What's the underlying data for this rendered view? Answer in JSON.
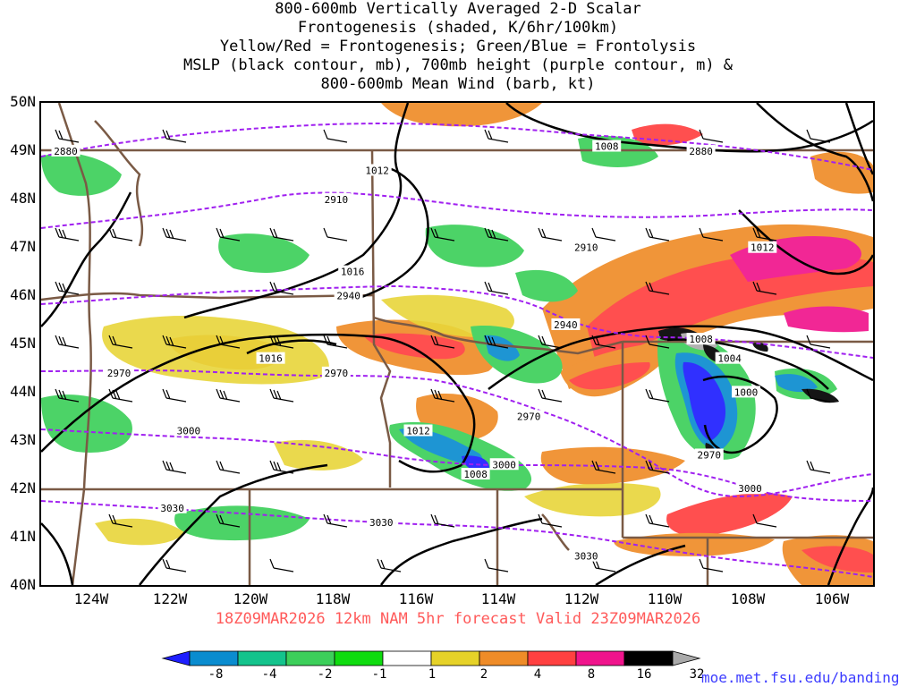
{
  "title": {
    "lines": [
      "800-600mb Vertically Averaged 2-D Scalar",
      "Frontogenesis (shaded, K/6hr/100km)",
      "Yellow/Red = Frontogenesis;  Green/Blue = Frontolysis",
      "MSLP (black contour, mb), 700mb height (purple contour, m) &",
      "800-600mb Mean Wind (barb, kt)"
    ]
  },
  "map": {
    "lat_labels": [
      "50N",
      "49N",
      "48N",
      "47N",
      "46N",
      "45N",
      "44N",
      "43N",
      "42N",
      "41N",
      "40N"
    ],
    "lon_labels": [
      "124W",
      "122W",
      "120W",
      "118W",
      "116W",
      "114W",
      "112W",
      "110W",
      "108W",
      "106W"
    ],
    "lat_values": [
      50,
      49,
      48,
      47,
      46,
      45,
      44,
      43,
      42,
      41,
      40
    ],
    "lon_values": [
      -124,
      -122,
      -120,
      -118,
      -116,
      -114,
      -112,
      -110,
      -108,
      -106
    ],
    "extent": {
      "lon_min": -125.2,
      "lon_max": -104.9,
      "lat_min": 40,
      "lat_max": 50
    },
    "mslp_labels": [
      {
        "text": "1012",
        "lon": -117.0,
        "lat": 48.6
      },
      {
        "text": "1008",
        "lon": -111.4,
        "lat": 49.1
      },
      {
        "text": "1016",
        "lon": -117.6,
        "lat": 46.5
      },
      {
        "text": "1016",
        "lon": -119.6,
        "lat": 44.7
      },
      {
        "text": "1012",
        "lon": -116.0,
        "lat": 43.2
      },
      {
        "text": "1008",
        "lon": -114.6,
        "lat": 42.3
      },
      {
        "text": "1012",
        "lon": -107.6,
        "lat": 47.0
      },
      {
        "text": "1008",
        "lon": -109.1,
        "lat": 45.1
      },
      {
        "text": "1004",
        "lon": -108.4,
        "lat": 44.7
      },
      {
        "text": "1000",
        "lon": -108.0,
        "lat": 44.0
      }
    ],
    "height_labels": [
      {
        "text": "2880",
        "lon": -109.1,
        "lat": 49.0
      },
      {
        "text": "2910",
        "lon": -118.0,
        "lat": 48.0
      },
      {
        "text": "2910",
        "lon": -111.9,
        "lat": 47.0
      },
      {
        "text": "2940",
        "lon": -117.7,
        "lat": 46.0
      },
      {
        "text": "2940",
        "lon": -112.4,
        "lat": 45.4
      },
      {
        "text": "2970",
        "lon": -123.3,
        "lat": 44.4
      },
      {
        "text": "2970",
        "lon": -118.0,
        "lat": 44.4
      },
      {
        "text": "2970",
        "lon": -113.3,
        "lat": 43.5
      },
      {
        "text": "2970",
        "lon": -108.9,
        "lat": 42.7
      },
      {
        "text": "3000",
        "lon": -121.6,
        "lat": 43.2
      },
      {
        "text": "3000",
        "lon": -113.9,
        "lat": 42.5
      },
      {
        "text": "3000",
        "lon": -107.9,
        "lat": 42.0
      },
      {
        "text": "3030",
        "lon": -122.0,
        "lat": 41.6
      },
      {
        "text": "3030",
        "lon": -116.9,
        "lat": 41.3
      },
      {
        "text": "3030",
        "lon": -111.9,
        "lat": 40.6
      },
      {
        "text": "2880",
        "lon": -124.6,
        "lat": 49.0
      }
    ]
  },
  "caption": "18Z09MAR2026  12km NAM 5hr forecast Valid 23Z09MAR2026",
  "colorbar": {
    "ticks": [
      "-8",
      "-4",
      "-2",
      "-1",
      "1",
      "2",
      "4",
      "8",
      "16",
      "32"
    ],
    "colors": [
      "#1e1eff",
      "#0a8ccf",
      "#14c38c",
      "#3ccf5a",
      "#0fdc0f",
      "#ffffff",
      "#e6d228",
      "#ef8c28",
      "#ff4040",
      "#f0148c",
      "#000000",
      "#aaaaaa"
    ]
  },
  "shading_colors": {
    "frontolysis_strong": "#1e1eff",
    "frontolysis_mod": "#0a8ccf",
    "frontolysis_weak": "#3ccf5a",
    "frontolysis_light": "#0fdc0f",
    "frontogenesis_light": "#e6d228",
    "frontogenesis_mod": "#ef8c28",
    "frontogenesis_strong": "#ff4040",
    "frontogenesis_very": "#f0148c"
  },
  "credit": "moe.met.fsu.edu/banding"
}
